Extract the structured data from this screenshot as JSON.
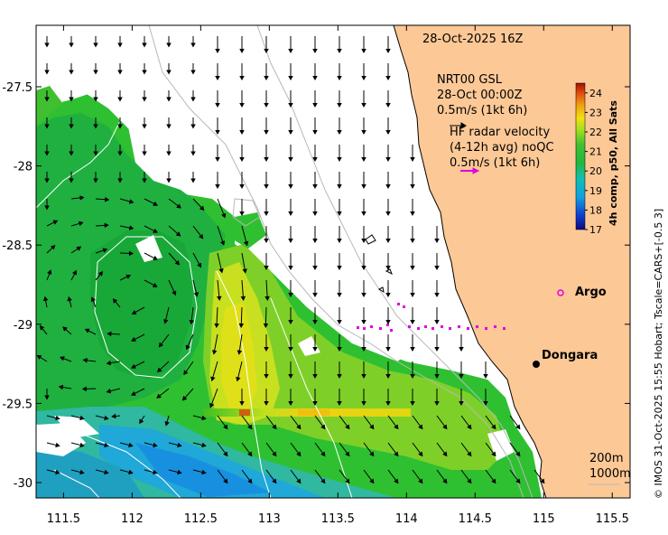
{
  "map": {
    "date_title": "28-Oct-2025 16Z",
    "model": {
      "name": "NRT00 GSL",
      "datetime": "28-Oct 00:00Z",
      "scale_label": "0.5m/s (1kt 6h)"
    },
    "hf_radar": {
      "title": "HF radar velocity",
      "avg": "(4-12h avg) noQC",
      "scale_label": "0.5m/s (1kt 6h)"
    },
    "x_ticks": [
      "111.5",
      "112",
      "112.5",
      "113",
      "113.5",
      "114",
      "114.5",
      "115",
      "115.5"
    ],
    "y_ticks": [
      "-27.5",
      "-28",
      "-28.5",
      "-29",
      "-29.5",
      "-30"
    ],
    "y_tick_values": [
      -27.5,
      -28,
      -28.5,
      -29,
      -29.5,
      -30
    ],
    "x_tick_values": [
      111.5,
      112,
      112.5,
      113,
      113.5,
      114,
      114.5,
      115,
      115.5
    ],
    "places": [
      {
        "name": "Argo",
        "marker": "circle",
        "color": "#e000e0"
      },
      {
        "name": "Dongara",
        "marker": "dot",
        "color": "#000000"
      }
    ],
    "contour_labels": [
      "200m",
      "1000m"
    ],
    "colorbar": {
      "label": "4h comp, p50, All Sats",
      "ticks": [
        "24",
        "23",
        "22",
        "21",
        "20",
        "19",
        "18",
        "17"
      ],
      "min": 17,
      "max": 24.5,
      "colors": [
        "#0a0a80",
        "#1040d0",
        "#10a0e0",
        "#10c0b0",
        "#20b840",
        "#40c030",
        "#a0e020",
        "#f0e010",
        "#f0a010",
        "#e05010",
        "#a01000"
      ]
    },
    "colors": {
      "land": "#fcc896",
      "coast": "#000000",
      "arrow": "#000000",
      "radar_arrow": "#e000e0"
    },
    "credit": "© IMOS 31-Oct-2025 15:55 Hobart; Tscale=CARS+[-0.5 3]"
  }
}
